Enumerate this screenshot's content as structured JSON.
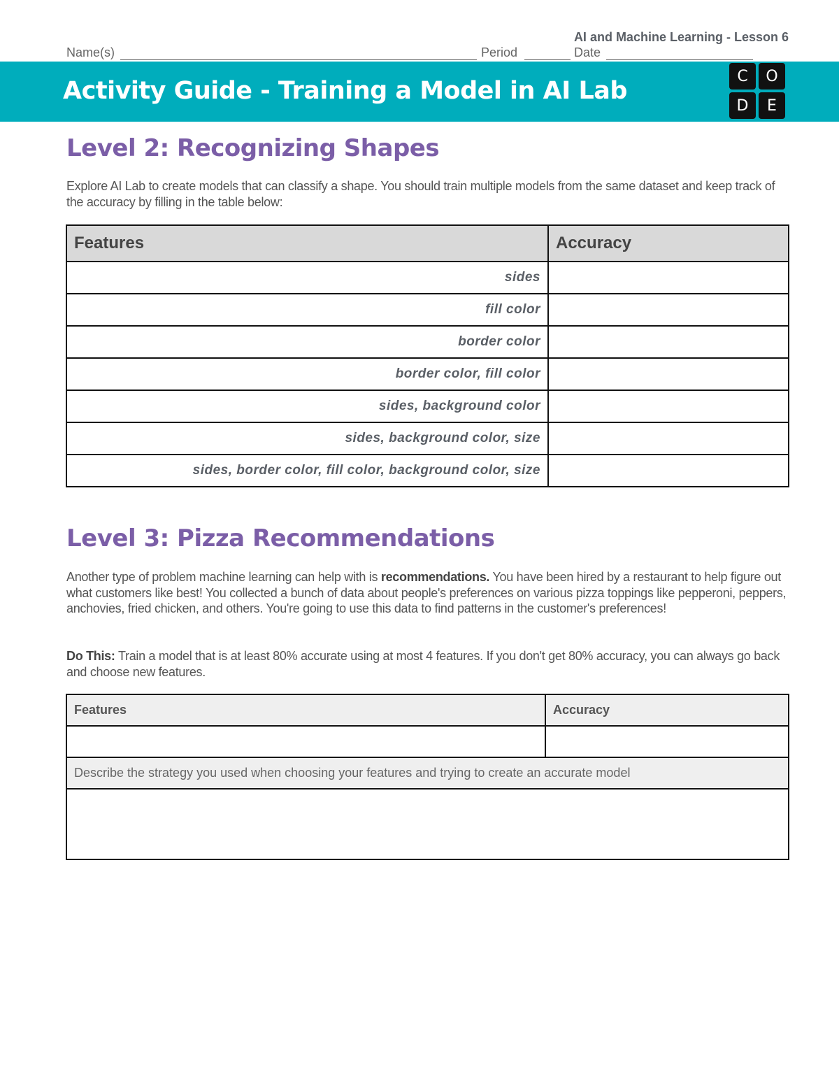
{
  "header": {
    "lesson": "AI and Machine Learning - Lesson 6",
    "name_label": "Name(s)",
    "period_label": "Period",
    "date_label": "Date",
    "title": "Activity Guide - Training a Model in AI Lab",
    "logo": [
      "C",
      "O",
      "D",
      "E"
    ]
  },
  "level2": {
    "heading": "Level 2: Recognizing Shapes",
    "intro": "Explore AI Lab to create models that can classify a shape. You should train multiple models from the same dataset and keep track of the accuracy by filling in the table below:",
    "table": {
      "headers": [
        "Features",
        "Accuracy"
      ],
      "rows": [
        {
          "features": "sides",
          "accuracy": ""
        },
        {
          "features": "fill color",
          "accuracy": ""
        },
        {
          "features": "border color",
          "accuracy": ""
        },
        {
          "features": "border color, fill color",
          "accuracy": ""
        },
        {
          "features": "sides, background color",
          "accuracy": ""
        },
        {
          "features": "sides, background color, size",
          "accuracy": ""
        },
        {
          "features": "sides, border color, fill color, background color, size",
          "accuracy": ""
        }
      ]
    }
  },
  "level3": {
    "heading": "Level 3: Pizza Recommendations",
    "intro_pre": "Another type of problem machine learning can help with is ",
    "intro_bold": "recommendations.",
    "intro_post": " You have been hired by a restaurant to help figure out what customers like best! You collected a bunch of data about people's preferences on various pizza toppings like pepperoni, peppers, anchovies, fried chicken, and others. You're going to use this data to find patterns in the customer's preferences!",
    "do_label": "Do This:",
    "do_text": " Train a model that is at least 80% accurate using at most 4 features. If you don't get 80% accuracy, you can always go back and choose new features.",
    "table": {
      "headers": [
        "Features",
        "Accuracy"
      ],
      "features_value": "",
      "accuracy_value": "",
      "strategy_prompt": "Describe the strategy you used when choosing your features and trying to create an accurate model",
      "strategy_value": ""
    }
  }
}
